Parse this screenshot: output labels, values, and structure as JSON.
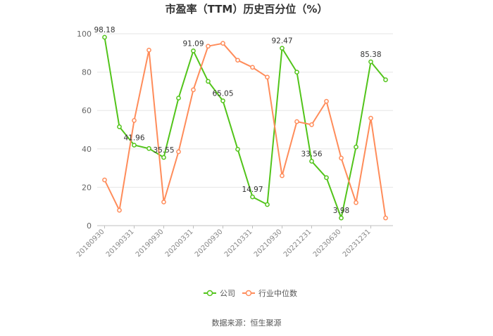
{
  "chart_data": {
    "type": "line",
    "title": "市盈率（TTM）历史百分位（%）",
    "source": "数据来源：恒生聚源",
    "ylim": [
      0,
      100
    ],
    "yticks": [
      0,
      20,
      40,
      60,
      80,
      100
    ],
    "x_tick_labels": [
      "20180930",
      "20190331",
      "20190930",
      "20200331",
      "20200930",
      "20210331",
      "20210930",
      "20221231",
      "20230630",
      "20231231"
    ],
    "x_tick_positions": [
      0,
      2,
      4,
      6,
      8,
      10,
      12,
      14,
      16,
      18
    ],
    "grid": true,
    "legend_position": "bottom",
    "series": [
      {
        "name": "公司",
        "color": "#52c41a",
        "values": [
          98.18,
          51.5,
          41.96,
          40.2,
          35.55,
          66.5,
          91.09,
          75.2,
          65.05,
          39.8,
          14.97,
          11.0,
          92.47,
          80.0,
          33.56,
          25.0,
          3.98,
          41.0,
          85.38,
          76.0
        ],
        "labels": [
          {
            "index": 0,
            "text": "98.18"
          },
          {
            "index": 2,
            "text": "41.96"
          },
          {
            "index": 4,
            "text": "35.55"
          },
          {
            "index": 6,
            "text": "91.09"
          },
          {
            "index": 8,
            "text": "65.05"
          },
          {
            "index": 10,
            "text": "14.97"
          },
          {
            "index": 12,
            "text": "92.47"
          },
          {
            "index": 14,
            "text": "33.56"
          },
          {
            "index": 16,
            "text": "3.98"
          },
          {
            "index": 18,
            "text": "85.38"
          }
        ]
      },
      {
        "name": "行业中位数",
        "color": "#ff8c5a",
        "values": [
          23.8,
          8.0,
          54.8,
          91.5,
          12.3,
          38.5,
          70.8,
          93.5,
          95.0,
          86.2,
          82.5,
          77.4,
          26.0,
          54.2,
          52.6,
          64.8,
          35.2,
          12.0,
          56.0,
          4.0
        ],
        "labels": []
      }
    ]
  }
}
